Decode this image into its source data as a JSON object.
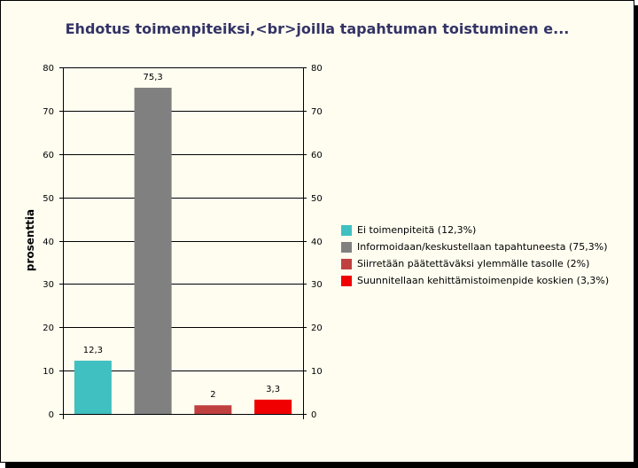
{
  "chart_data": {
    "type": "bar",
    "title": "Ehdotus toimenpiteiksi,<br>joilla tapahtuman toistuminen e...",
    "ylabel": "prosenttia",
    "xlabel": "",
    "ylim": [
      0,
      80
    ],
    "yticks": [
      "0",
      "10",
      "20",
      "30",
      "40",
      "50",
      "60",
      "70",
      "80"
    ],
    "grid": true,
    "legend_position": "right",
    "categories": [
      "Ei toimenpiteitä (12,3%)",
      "Informoidaan/keskustellaan tapahtuneesta (75,3%)",
      "Siirretään päätettäväksi ylemmälle tasolle (2%)",
      "Suunnitellaan kehittämistoimenpide koskien (3,3%)"
    ],
    "values": [
      12.3,
      75.3,
      2,
      3.3
    ],
    "labels": [
      "12,3",
      "75,3",
      "2",
      "3,3"
    ],
    "colors": [
      "#40c0c0",
      "#808080",
      "#c04040",
      "#f00000"
    ]
  }
}
